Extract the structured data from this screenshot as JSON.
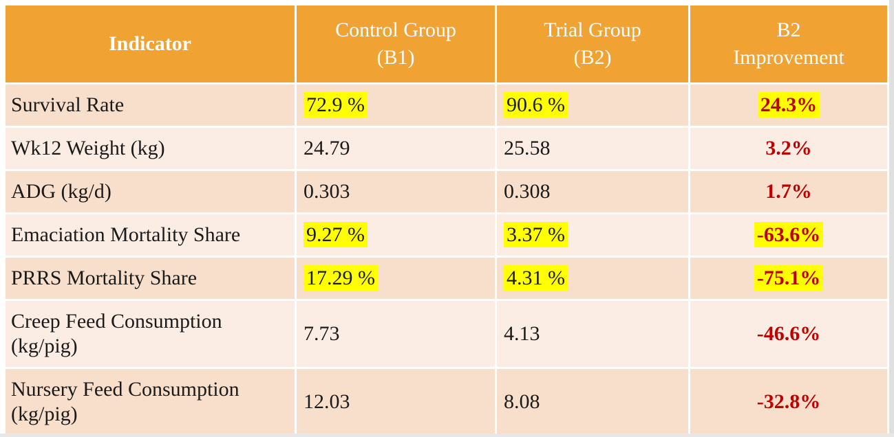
{
  "colors": {
    "header_bg": "#F0A232",
    "row_odd": "#F8DFCB",
    "row_even": "#FBEDE3",
    "highlight": "#FFFF00",
    "improvement_red": "#C00000",
    "header_text": "#FFFFFF",
    "body_text": "#1A1A1A",
    "edge_gray": "#E0E0E0"
  },
  "table": {
    "columns": [
      {
        "label": "Indicator"
      },
      {
        "label": "Control Group\n(B1)"
      },
      {
        "label": "Trial Group\n(B2)"
      },
      {
        "label": "B2\nImprovement"
      }
    ],
    "rows": [
      {
        "indicator": "Survival Rate",
        "control": "72.9 %",
        "trial": "90.6 %",
        "improvement": "24.3%",
        "highlights": [
          "control",
          "trial",
          "improvement"
        ]
      },
      {
        "indicator": "Wk12 Weight (kg)",
        "control": "24.79",
        "trial": "25.58",
        "improvement": "3.2%",
        "highlights": []
      },
      {
        "indicator": "ADG (kg/d)",
        "control": "0.303",
        "trial": "0.308",
        "improvement": "1.7%",
        "highlights": []
      },
      {
        "indicator": "Emaciation Mortality Share",
        "control": "9.27 %",
        "trial": "3.37 %",
        "improvement": "-63.6%",
        "highlights": [
          "control",
          "trial",
          "improvement"
        ]
      },
      {
        "indicator": "PRRS Mortality Share",
        "control": "17.29 %",
        "trial": "4.31 %",
        "improvement": "-75.1%",
        "highlights": [
          "control",
          "trial",
          "improvement"
        ]
      },
      {
        "indicator": "Creep Feed Consumption (kg/pig)",
        "control": "7.73",
        "trial": "4.13",
        "improvement": "-46.6%",
        "highlights": []
      },
      {
        "indicator": "Nursery Feed Consumption (kg/pig)",
        "control": "12.03",
        "trial": "8.08",
        "improvement": "-32.8%",
        "highlights": []
      }
    ]
  },
  "chart_data": {
    "type": "table",
    "title": "",
    "columns": [
      "Indicator",
      "Control Group (B1)",
      "Trial Group (B2)",
      "B2 Improvement"
    ],
    "rows": [
      [
        "Survival Rate",
        "72.9 %",
        "90.6 %",
        "24.3%"
      ],
      [
        "Wk12 Weight (kg)",
        "24.79",
        "25.58",
        "3.2%"
      ],
      [
        "ADG (kg/d)",
        "0.303",
        "0.308",
        "1.7%"
      ],
      [
        "Emaciation Mortality Share",
        "9.27 %",
        "3.37 %",
        "-63.6%"
      ],
      [
        "PRRS Mortality Share",
        "17.29 %",
        "4.31 %",
        "-75.1%"
      ],
      [
        "Creep Feed Consumption (kg/pig)",
        "7.73",
        "4.13",
        "-46.6%"
      ],
      [
        "Nursery Feed Consumption (kg/pig)",
        "12.03",
        "8.08",
        "-32.8%"
      ]
    ],
    "highlighted_cells": [
      [
        0,
        1
      ],
      [
        0,
        2
      ],
      [
        0,
        3
      ],
      [
        3,
        1
      ],
      [
        3,
        2
      ],
      [
        3,
        3
      ],
      [
        4,
        1
      ],
      [
        4,
        2
      ],
      [
        4,
        3
      ]
    ],
    "notes": "Improvement column values rendered bold dark-red; highlighted cells have yellow marker background"
  }
}
